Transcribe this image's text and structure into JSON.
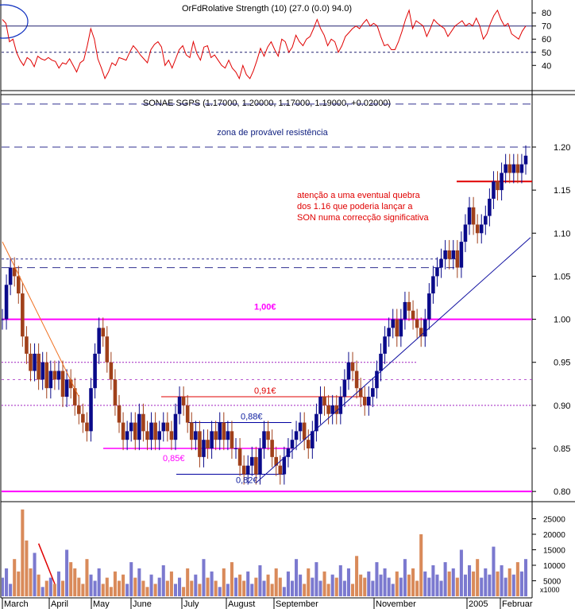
{
  "colors": {
    "background": "#ffffff",
    "axis": "#000000",
    "rsi_line": "#e00000",
    "up_bar": "#0a0a8a",
    "down_bar": "#a0401a",
    "magenta": "#ff00ff",
    "red_level": "#e00000",
    "blue_level": "#0000a0",
    "dashed_resistance": "#303090",
    "purple_dotted": "#a020c0",
    "trend_line": "#1010a0",
    "orange_trend": "#f07020",
    "volume_blue": "#7b79cf",
    "volume_orange": "#d98a5a",
    "red_text": "#e00000"
  },
  "rsi_panel": {
    "header": "OrFdRolative Strength (10) (27.0 (0.0) 94.0)",
    "levels": {
      "upper": 70,
      "lower": 50
    }
  },
  "price_panel": {
    "header": "SONAE SGPS (1.17000, 1.20000, 1.17000, 1.19000, +0.02000)",
    "resistance_zone_label": "zona de provável resistência",
    "warning_note": [
      "atenção a uma eventual quebra",
      "dos 1.16 que poderia lançar a",
      "SON numa correcção significativa"
    ],
    "level_labels": {
      "l100": "1,00€",
      "l091": "0,91€",
      "l088": "0,88€",
      "l085": "0,85€",
      "l082": "0,82€"
    }
  },
  "volume_panel": {
    "multiplier_label": "x1000"
  },
  "x_axis": {
    "months": [
      "March",
      "April",
      "May",
      "June",
      "July",
      "August",
      "September",
      "November",
      "2005",
      "Februar"
    ]
  },
  "chart_data": [
    {
      "type": "line",
      "title": "OrFdRolative Strength (10) (27.0 (0.0) 94.0)",
      "ylim": [
        22,
        88
      ],
      "yticks": [
        40,
        50,
        60,
        70,
        80
      ],
      "reference_lines": [
        70,
        50
      ],
      "x_start": "March",
      "x_end": "Februar",
      "series": [
        {
          "values": [
            75,
            72,
            58,
            60,
            50,
            44,
            40,
            46,
            44,
            39,
            47,
            45,
            44,
            46,
            44,
            43,
            38,
            42,
            41,
            45,
            40,
            35,
            42,
            44,
            55,
            68,
            60,
            45,
            38,
            30,
            35,
            42,
            40,
            46,
            45,
            44,
            50,
            55,
            52,
            48,
            45,
            42,
            52,
            56,
            58,
            54,
            40,
            44,
            38,
            45,
            52,
            55,
            48,
            46,
            58,
            49,
            44,
            54,
            55,
            46,
            48,
            44,
            40,
            38,
            44,
            38,
            35,
            30,
            40,
            33,
            30,
            36,
            44,
            53,
            47,
            54,
            58,
            52,
            47,
            60,
            58,
            50,
            54,
            63,
            58,
            55,
            60,
            62,
            68,
            75,
            68,
            63,
            55,
            60,
            58,
            50,
            55,
            62,
            65,
            68,
            70,
            68,
            72,
            75,
            70,
            72,
            70,
            62,
            55,
            56,
            52,
            52,
            58,
            66,
            75,
            82,
            68,
            74,
            72,
            70,
            62,
            68,
            75,
            72,
            70,
            68,
            62,
            66,
            70,
            72,
            74,
            70,
            72,
            70,
            76,
            70,
            60,
            64,
            72,
            78,
            82,
            75,
            70,
            72,
            64,
            62,
            60,
            66,
            70
          ]
        }
      ]
    },
    {
      "type": "bar",
      "title": "SONAE SGPS (1.17000, 1.20000, 1.17000, 1.19000, +0.02000)",
      "ylim": [
        0.79,
        1.26
      ],
      "yticks": [
        0.8,
        0.85,
        0.9,
        0.95,
        1.0,
        1.05,
        1.1,
        1.15,
        1.2
      ],
      "x_start": "March",
      "x_end": "Februar",
      "series": [
        {
          "name": "close",
          "values": [
            1.0,
            1.04,
            1.06,
            1.05,
            1.03,
            0.98,
            0.96,
            0.94,
            0.96,
            0.93,
            0.95,
            0.92,
            0.94,
            0.93,
            0.94,
            0.91,
            0.93,
            0.92,
            0.9,
            0.89,
            0.88,
            0.87,
            0.92,
            0.96,
            0.99,
            0.98,
            0.95,
            0.93,
            0.9,
            0.88,
            0.86,
            0.87,
            0.88,
            0.86,
            0.89,
            0.87,
            0.86,
            0.88,
            0.86,
            0.87,
            0.88,
            0.87,
            0.86,
            0.89,
            0.91,
            0.9,
            0.88,
            0.86,
            0.87,
            0.84,
            0.86,
            0.85,
            0.87,
            0.86,
            0.88,
            0.86,
            0.87,
            0.85,
            0.85,
            0.83,
            0.82,
            0.83,
            0.84,
            0.82,
            0.85,
            0.87,
            0.86,
            0.84,
            0.83,
            0.82,
            0.84,
            0.85,
            0.86,
            0.87,
            0.88,
            0.86,
            0.85,
            0.87,
            0.89,
            0.91,
            0.9,
            0.89,
            0.9,
            0.89,
            0.91,
            0.93,
            0.95,
            0.94,
            0.92,
            0.91,
            0.9,
            0.91,
            0.92,
            0.94,
            0.96,
            0.98,
            0.99,
            1.0,
            0.98,
            1.0,
            1.02,
            1.01,
            1.0,
            0.99,
            0.98,
            1.0,
            1.03,
            1.05,
            1.06,
            1.07,
            1.08,
            1.07,
            1.08,
            1.06,
            1.09,
            1.11,
            1.13,
            1.11,
            1.1,
            1.11,
            1.12,
            1.14,
            1.16,
            1.15,
            1.17,
            1.18,
            1.17,
            1.18,
            1.17,
            1.18,
            1.19
          ]
        }
      ],
      "horizontal_levels": [
        {
          "label": "1,00€",
          "value": 1.0
        },
        {
          "label": "0,91€",
          "value": 0.91
        },
        {
          "label": "0,88€",
          "value": 0.88
        },
        {
          "label": "0,85€",
          "value": 0.85
        },
        {
          "label": "0,82€",
          "value": 0.82
        },
        {
          "label": "",
          "value": 0.8
        },
        {
          "label": "",
          "value": 1.16
        },
        {
          "label": "",
          "value": 1.25
        },
        {
          "label": "",
          "value": 1.2
        },
        {
          "label": "",
          "value": 1.07
        },
        {
          "label": "",
          "value": 1.06
        },
        {
          "label": "",
          "value": 0.95
        },
        {
          "label": "",
          "value": 0.93
        },
        {
          "label": "",
          "value": 0.9
        }
      ]
    },
    {
      "type": "bar",
      "title": "",
      "ylabel": "x1000",
      "ylim": [
        0,
        30000
      ],
      "yticks": [
        5000,
        10000,
        15000,
        20000,
        25000
      ],
      "x_start": "March",
      "x_end": "Februar",
      "series": [
        {
          "values": [
            6000,
            9000,
            4000,
            12000,
            8000,
            28000,
            18000,
            9000,
            14000,
            7000,
            3000,
            5000,
            6000,
            4000,
            8000,
            5000,
            15000,
            11000,
            9000,
            6000,
            4000,
            12000,
            7000,
            5000,
            9000,
            4000,
            6000,
            3000,
            8000,
            5000,
            7000,
            4000,
            11000,
            6000,
            9000,
            5000,
            3000,
            7000,
            4000,
            6000,
            10000,
            5000,
            8000,
            4000,
            6000,
            3000,
            9000,
            5000,
            7000,
            4000,
            12000,
            6000,
            8000,
            5000,
            3000,
            9000,
            4000,
            11000,
            6000,
            7000,
            5000,
            8000,
            4000,
            6000,
            10000,
            5000,
            7000,
            4000,
            9000,
            6000,
            3000,
            8000,
            5000,
            12000,
            7000,
            4000,
            9000,
            6000,
            11000,
            5000,
            8000,
            4000,
            7000,
            6000,
            10000,
            5000,
            9000,
            4000,
            13000,
            7000,
            6000,
            8000,
            5000,
            11000,
            7000,
            9000,
            6000,
            4000,
            8000,
            6000,
            12000,
            7000,
            9000,
            5000,
            20000,
            8000,
            6000,
            10000,
            7000,
            5000,
            11000,
            8000,
            9000,
            6000,
            15000,
            7000,
            10000,
            8000,
            12000,
            6000,
            9000,
            7000,
            16000,
            8000,
            10000,
            6000,
            9000,
            7000,
            11000,
            8000,
            12000
          ]
        }
      ]
    }
  ]
}
